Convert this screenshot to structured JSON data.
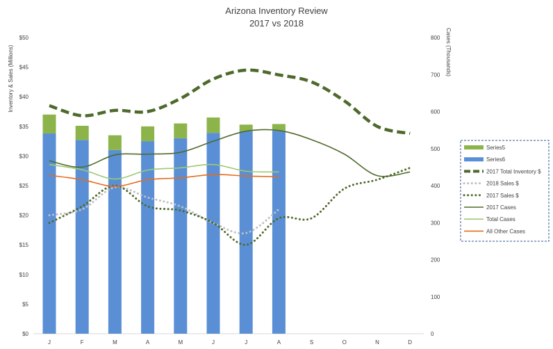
{
  "chart_data": {
    "type": "bar",
    "title": "Arizona Inventory Review",
    "subtitle": "2017 vs 2018",
    "ylabel": "Inventory & Sales (Millions)",
    "y2label": "Cases (Thousands)",
    "categories": [
      "J",
      "F",
      "M",
      "A",
      "M",
      "J",
      "J",
      "A",
      "S",
      "O",
      "N",
      "D"
    ],
    "ylim": [
      0,
      50
    ],
    "y2lim": [
      0,
      800
    ],
    "yticks": [
      "$0",
      "$5",
      "$10",
      "$15",
      "$20",
      "$25",
      "$30",
      "$35",
      "$40",
      "$45",
      "$50"
    ],
    "y2ticks": [
      "0",
      "100",
      "200",
      "300",
      "400",
      "500",
      "600",
      "700",
      "800"
    ],
    "grid": false,
    "legend_position": "right",
    "series": [
      {
        "name": "Series5",
        "kind": "bar-stack-top",
        "axis": "left",
        "color": "#8db44a",
        "values": [
          3.2,
          2.4,
          2.5,
          2.5,
          2.5,
          2.6,
          1.1,
          1.1,
          null,
          null,
          null,
          null
        ]
      },
      {
        "name": "Series6",
        "kind": "bar-stack-base",
        "axis": "left",
        "color": "#5a8fd6",
        "values": [
          33.8,
          32.7,
          31.0,
          32.5,
          33.0,
          33.9,
          34.2,
          34.3,
          null,
          null,
          null,
          null
        ]
      },
      {
        "name": "2017 Total Inventory $",
        "kind": "line-dashed",
        "axis": "left",
        "color": "#4e6a2b",
        "values": [
          38.5,
          36.8,
          37.7,
          37.5,
          39.7,
          43.0,
          44.5,
          43.7,
          42.5,
          39.3,
          35.0,
          33.8
        ]
      },
      {
        "name": "2018 Sales $",
        "kind": "line-dotted",
        "axis": "left",
        "color": "#c0c0c0",
        "values": [
          20.0,
          21.0,
          24.7,
          23.0,
          21.5,
          18.7,
          17.0,
          21.0,
          null,
          null,
          null,
          null
        ]
      },
      {
        "name": "2017 Sales $",
        "kind": "line-dotted",
        "axis": "left",
        "color": "#4e6a2b",
        "values": [
          18.7,
          21.5,
          25.0,
          21.5,
          20.8,
          18.7,
          15.0,
          19.5,
          19.5,
          24.5,
          26.0,
          28.0
        ]
      },
      {
        "name": "2017 Cases",
        "kind": "line",
        "axis": "right",
        "color": "#4e6a2b",
        "values": [
          467,
          450,
          483,
          485,
          490,
          520,
          547,
          549,
          524,
          485,
          427,
          437
        ]
      },
      {
        "name": "Total Cases",
        "kind": "line",
        "axis": "right",
        "color": "#9dc971",
        "values": [
          457,
          443,
          418,
          442,
          448,
          457,
          439,
          437,
          null,
          null,
          null,
          null
        ]
      },
      {
        "name": "All Other Cases",
        "kind": "line",
        "axis": "right",
        "color": "#e46c1a",
        "values": [
          428,
          416,
          398,
          416,
          421,
          430,
          426,
          424,
          null,
          null,
          null,
          null
        ]
      }
    ]
  }
}
